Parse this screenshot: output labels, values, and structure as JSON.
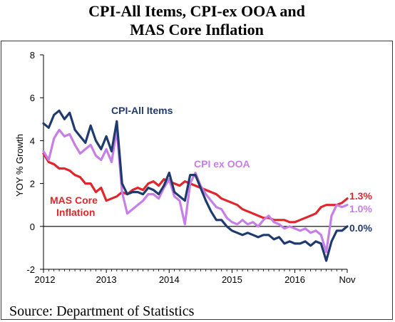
{
  "chart_data": {
    "type": "line",
    "title_lines": [
      "CPI-All Items, CPI-ex OOA and",
      "MAS Core Inflation"
    ],
    "ylabel": "YOY % Growth",
    "xlabel": "",
    "ylim": [
      -2,
      8
    ],
    "yticks": [
      -2,
      0,
      2,
      4,
      6,
      8
    ],
    "xlim": [
      0,
      58
    ],
    "xticks": [
      {
        "label": "2012",
        "pos": 0
      },
      {
        "label": "2013",
        "pos": 12
      },
      {
        "label": "2014",
        "pos": 24
      },
      {
        "label": "2015",
        "pos": 36
      },
      {
        "label": "2016",
        "pos": 48
      },
      {
        "label": "Nov",
        "pos": 58
      }
    ],
    "zero_line": true,
    "grid": false,
    "source": "Source: Department of Statistics",
    "series": [
      {
        "name": "CPI-All Items",
        "color": "#1f3b6e",
        "annotation": "CPI-All Items",
        "end_label": "0.0%",
        "values": [
          4.8,
          4.6,
          5.2,
          5.4,
          5.0,
          5.3,
          4.5,
          4.2,
          3.9,
          4.7,
          4.0,
          3.6,
          4.2,
          3.5,
          4.9,
          2.0,
          1.5,
          1.6,
          1.6,
          1.5,
          1.8,
          1.7,
          1.5,
          1.9,
          2.5,
          1.6,
          1.4,
          1.2,
          2.4,
          2.4,
          1.8,
          1.2,
          0.7,
          0.3,
          0.3,
          0.0,
          -0.2,
          -0.3,
          -0.4,
          -0.3,
          -0.4,
          -0.5,
          -0.4,
          -0.4,
          -0.6,
          -0.5,
          -0.8,
          -0.7,
          -0.8,
          -0.8,
          -0.7,
          -0.9,
          -0.7,
          -0.8,
          -1.6,
          -0.7,
          -0.2,
          -0.2,
          0.0
        ]
      },
      {
        "name": "CPI ex OOA",
        "color": "#c77ee6",
        "annotation": "CPI ex OOA",
        "end_label": "1.0%",
        "values": [
          3.5,
          3.1,
          4.1,
          4.5,
          4.2,
          4.3,
          3.8,
          3.4,
          3.6,
          3.8,
          3.3,
          3.1,
          3.6,
          3.0,
          4.5,
          1.6,
          0.6,
          0.8,
          1.0,
          1.2,
          1.5,
          1.5,
          1.3,
          1.8,
          2.2,
          1.4,
          1.2,
          0.1,
          2.0,
          2.5,
          1.9,
          1.5,
          1.2,
          0.9,
          0.8,
          0.4,
          0.2,
          0.1,
          0.3,
          0.1,
          0.2,
          0.0,
          0.3,
          0.5,
          0.2,
          0.1,
          -0.1,
          0.0,
          -0.1,
          -0.2,
          -0.1,
          -0.3,
          -0.2,
          -0.4,
          -1.2,
          0.5,
          1.0,
          0.9,
          1.0
        ]
      },
      {
        "name": "MAS Core Inflation",
        "color": "#e0262b",
        "annotation_lines": [
          "MAS Core",
          "Inflation"
        ],
        "end_label": "1.3%",
        "values": [
          3.4,
          3.0,
          2.9,
          2.7,
          2.7,
          2.6,
          2.4,
          2.3,
          2.0,
          2.0,
          1.6,
          1.8,
          1.2,
          1.3,
          1.4,
          1.6,
          1.5,
          1.7,
          1.8,
          1.7,
          2.0,
          2.1,
          1.9,
          2.2,
          2.1,
          2.0,
          1.9,
          2.1,
          2.0,
          1.9,
          1.8,
          1.7,
          1.6,
          1.5,
          1.3,
          1.2,
          1.1,
          1.0,
          0.8,
          0.7,
          0.6,
          0.5,
          0.4,
          0.4,
          0.3,
          0.3,
          0.3,
          0.2,
          0.2,
          0.3,
          0.4,
          0.5,
          0.6,
          0.9,
          1.0,
          1.0,
          1.0,
          1.1,
          1.3
        ]
      }
    ]
  }
}
